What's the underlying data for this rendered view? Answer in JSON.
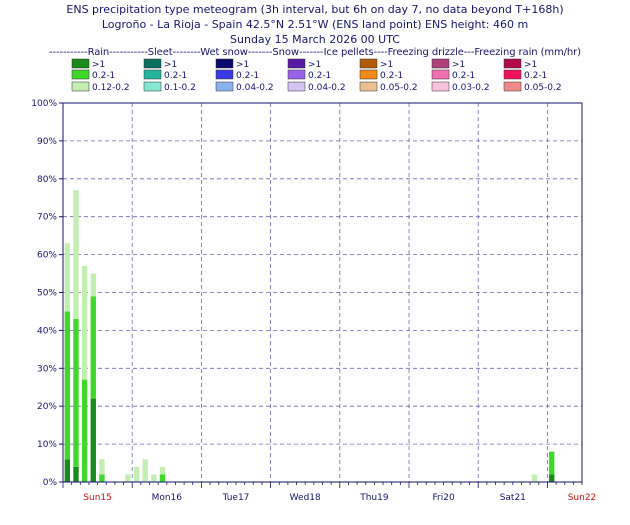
{
  "titles": {
    "line1": "ENS precipitation type meteogram (3h interval, but 6h on day 7, no data beyond T+168h)",
    "line2": "Logroño - La Rioja - Spain 42.5°N 2.51°W (ENS land point) ENS height: 460 m",
    "line3": "Sunday 15 March 2026 00 UTC"
  },
  "legend_header": "-----------Rain-----------Sleet--------Wet snow-------Snow-------Ice pellets----Freezing drizzle---Freezing rain (mm/hr)",
  "legend": [
    {
      "type": "Rain",
      "levels": [
        {
          "label": ">1",
          "color": "#1a8a1a"
        },
        {
          "label": "0.2-1",
          "color": "#3fd82a"
        },
        {
          "label": "0.12-0.2",
          "color": "#c2eeb2"
        }
      ]
    },
    {
      "type": "Sleet",
      "levels": [
        {
          "label": ">1",
          "color": "#0b6e5f"
        },
        {
          "label": "0.2-1",
          "color": "#22b39a"
        },
        {
          "label": "0.1-0.2",
          "color": "#86e6d4"
        }
      ]
    },
    {
      "type": "Wet snow",
      "levels": [
        {
          "label": ">1",
          "color": "#0a0a6e"
        },
        {
          "label": "0.2-1",
          "color": "#3a3ae6"
        },
        {
          "label": "0.04-0.2",
          "color": "#8ab0ee"
        }
      ]
    },
    {
      "type": "Snow",
      "levels": [
        {
          "label": ">1",
          "color": "#5a1aa6"
        },
        {
          "label": "0.2-1",
          "color": "#9a62e6"
        },
        {
          "label": "0.04-0.2",
          "color": "#d4c2f0"
        }
      ]
    },
    {
      "type": "Ice pellets",
      "levels": [
        {
          "label": ">1",
          "color": "#b25a08"
        },
        {
          "label": "0.2-1",
          "color": "#f08a1a"
        },
        {
          "label": "0.05-0.2",
          "color": "#eac092"
        }
      ]
    },
    {
      "type": "Freezing drizzle",
      "levels": [
        {
          "label": ">1",
          "color": "#b0407a"
        },
        {
          "label": "0.2-1",
          "color": "#f070b0"
        },
        {
          "label": "0.03-0.2",
          "color": "#f8c2de"
        }
      ]
    },
    {
      "type": "Freezing rain",
      "levels": [
        {
          "label": ">1",
          "color": "#b00a4a"
        },
        {
          "label": "0.2-1",
          "color": "#f01060"
        },
        {
          "label": "0.05-0.2",
          "color": "#f08a8a"
        }
      ]
    }
  ],
  "chart_data": {
    "type": "bar",
    "stacked": true,
    "ylabel": "",
    "ylim": [
      0,
      100
    ],
    "yticks": [
      "0%",
      "10%",
      "20%",
      "30%",
      "40%",
      "50%",
      "60%",
      "70%",
      "80%",
      "90%",
      "100%"
    ],
    "x_range_hours": [
      0,
      168
    ],
    "day_labels": [
      {
        "label": "Sun15",
        "hour": 12,
        "color": "#d81010"
      },
      {
        "label": "Mon16",
        "hour": 36,
        "color": "#16166e"
      },
      {
        "label": "Tue17",
        "hour": 60,
        "color": "#16166e"
      },
      {
        "label": "Wed18",
        "hour": 84,
        "color": "#16166e"
      },
      {
        "label": "Thu19",
        "hour": 108,
        "color": "#16166e"
      },
      {
        "label": "Fri20",
        "hour": 132,
        "color": "#16166e"
      },
      {
        "label": "Sat21",
        "hour": 156,
        "color": "#16166e"
      },
      {
        "label": "Sun22",
        "hour": 180,
        "color": "#d81010"
      }
    ],
    "series_colors": {
      "heavy": "#1a8a1a",
      "moderate": "#3fd82a",
      "light": "#c2eeb2"
    },
    "bars": [
      {
        "hour": 0,
        "heavy": 6,
        "moderate": 39,
        "light": 18
      },
      {
        "hour": 3,
        "heavy": 4,
        "moderate": 39,
        "light": 34
      },
      {
        "hour": 6,
        "heavy": 0,
        "moderate": 27,
        "light": 30
      },
      {
        "hour": 9,
        "heavy": 22,
        "moderate": 27,
        "light": 6
      },
      {
        "hour": 12,
        "heavy": 0,
        "moderate": 2,
        "light": 4
      },
      {
        "hour": 21,
        "heavy": 0,
        "moderate": 0,
        "light": 2
      },
      {
        "hour": 24,
        "heavy": 0,
        "moderate": 0,
        "light": 4
      },
      {
        "hour": 27,
        "heavy": 0,
        "moderate": 0,
        "light": 6
      },
      {
        "hour": 30,
        "heavy": 0,
        "moderate": 0,
        "light": 2
      },
      {
        "hour": 33,
        "heavy": 0,
        "moderate": 2,
        "light": 2
      },
      {
        "hour": 162,
        "heavy": 0,
        "moderate": 0,
        "light": 2
      },
      {
        "hour": 168,
        "heavy": 2,
        "moderate": 6,
        "light": 0
      }
    ]
  }
}
